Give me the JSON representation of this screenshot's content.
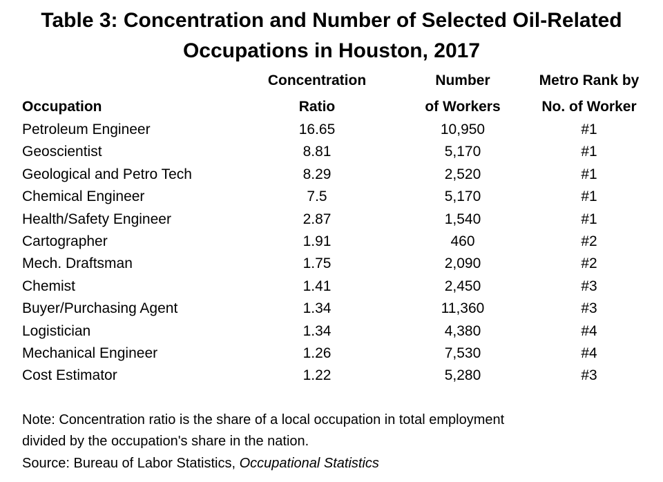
{
  "title": {
    "line1": "Table 3: Concentration and Number of Selected Oil-Related",
    "line2": "Occupations in Houston, 2017"
  },
  "headers": {
    "occupation": "Occupation",
    "ratio_l1": "Concentration",
    "ratio_l2": "Ratio",
    "number_l1": "Number",
    "number_l2": "of Workers",
    "rank_l1": "Metro Rank by",
    "rank_l2": "No. of Worker"
  },
  "chart_data": {
    "type": "table",
    "title": "Table 3: Concentration and Number of Selected Oil-Related Occupations in Houston, 2017",
    "columns": [
      "Occupation",
      "Concentration Ratio",
      "Number of Workers",
      "Metro Rank by No. of Worker"
    ],
    "rows": [
      [
        "Petroleum Engineer",
        "16.65",
        "10,950",
        "#1"
      ],
      [
        "Geoscientist",
        "8.81",
        "5,170",
        "#1"
      ],
      [
        "Geological and Petro Tech",
        "8.29",
        "2,520",
        "#1"
      ],
      [
        "Chemical Engineer",
        "7.5",
        "5,170",
        "#1"
      ],
      [
        "Health/Safety Engineer",
        "2.87",
        "1,540",
        "#1"
      ],
      [
        "Cartographer",
        "1.91",
        "460",
        "#2"
      ],
      [
        "Mech. Draftsman",
        "1.75",
        "2,090",
        "#2"
      ],
      [
        "Chemist",
        "1.41",
        "2,450",
        "#3"
      ],
      [
        "Buyer/Purchasing Agent",
        "1.34",
        "11,360",
        "#3"
      ],
      [
        "Logistician",
        "1.34",
        "4,380",
        "#4"
      ],
      [
        "Mechanical Engineer",
        "1.26",
        "7,530",
        "#4"
      ],
      [
        "Cost Estimator",
        "1.22",
        "5,280",
        "#3"
      ]
    ]
  },
  "notes": {
    "line1": "Note: Concentration ratio is the share of a local occupation in total employment",
    "line2": "divided by the occupation's share in the nation.",
    "source_prefix": "Source: Bureau of Labor Statistics, ",
    "source_title": "Occupational Statistics"
  }
}
